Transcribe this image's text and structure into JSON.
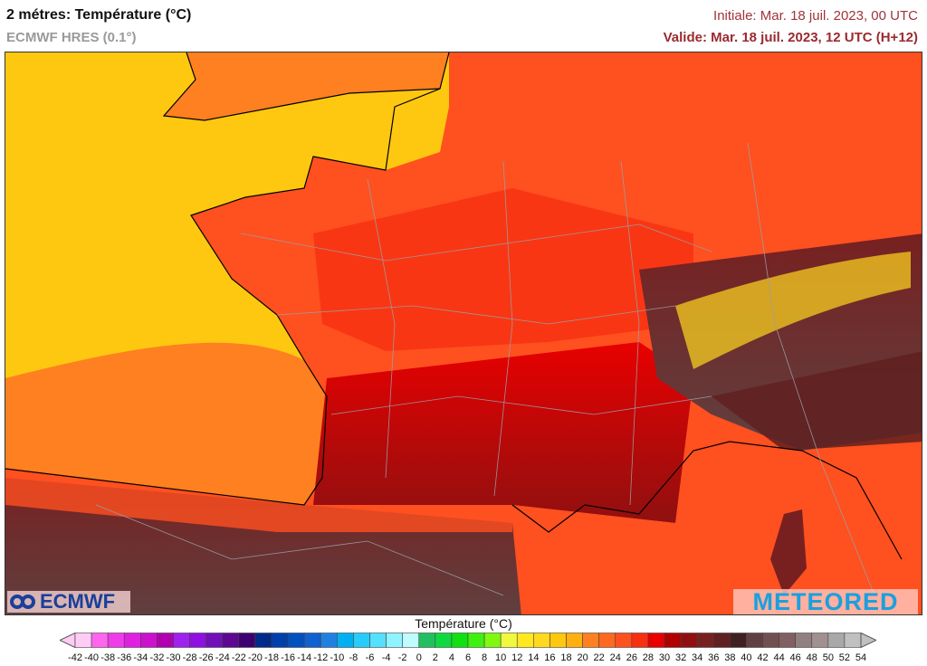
{
  "header": {
    "title": "2 métres: Température (°C)",
    "model": "ECMWF HRES (0.1°)",
    "initial": "Initiale: Mar. 18 juil. 2023, 00 UTC",
    "valid": "Valide: Mar. 18 juil. 2023, 12 UTC (H+12)"
  },
  "logos": {
    "left": "ECMWF",
    "right": "METEORED"
  },
  "colorbar": {
    "title": "Température (°C)",
    "labels": [
      "-42",
      "-40",
      "-38",
      "-36",
      "-34",
      "-32",
      "-30",
      "-28",
      "-26",
      "-24",
      "-22",
      "-20",
      "-18",
      "-16",
      "-14",
      "-12",
      "-10",
      "-8",
      "-6",
      "-4",
      "-2",
      "0",
      "2",
      "4",
      "6",
      "8",
      "10",
      "12",
      "14",
      "16",
      "18",
      "20",
      "22",
      "24",
      "26",
      "28",
      "30",
      "32",
      "34",
      "36",
      "38",
      "40",
      "42",
      "44",
      "46",
      "48",
      "50",
      "52",
      "54"
    ],
    "colors": [
      "#ffccf5",
      "#ff66ee",
      "#f03ce8",
      "#e020e0",
      "#cc10cc",
      "#b000b0",
      "#a020f0",
      "#8f10e0",
      "#7010b8",
      "#5c0890",
      "#3c0070",
      "#002a8a",
      "#0040aa",
      "#0050c0",
      "#1060d0",
      "#2080e0",
      "#00b0f0",
      "#28ccf8",
      "#55e0ff",
      "#90f4ff",
      "#c0fcff",
      "#20c060",
      "#10d840",
      "#10e010",
      "#40f010",
      "#80f810",
      "#f0f840",
      "#ffe820",
      "#ffd820",
      "#ffc810",
      "#ffb010",
      "#ff8020",
      "#ff6820",
      "#ff5020",
      "#f83010",
      "#e80000",
      "#b00000",
      "#901010",
      "#782020",
      "#602020",
      "#402020",
      "#604040",
      "#705050",
      "#806060",
      "#908080",
      "#a09090",
      "#a8a8a8",
      "#c0c0c0"
    ]
  }
}
